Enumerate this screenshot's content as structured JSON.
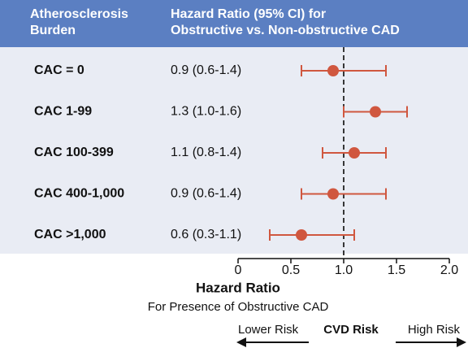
{
  "chart_data": {
    "type": "forest",
    "column_headers": [
      [
        "Atherosclerosis",
        "Burden"
      ],
      [
        "Hazard Ratio (95% CI) for",
        "Obstructive vs. Non-obstructive CAD"
      ]
    ],
    "categories": [
      "CAC = 0",
      "CAC 1-99",
      "CAC 100-399",
      "CAC 400-1,000",
      "CAC >1,000"
    ],
    "values": [
      0.9,
      1.3,
      1.1,
      0.9,
      0.6
    ],
    "ci_low": [
      0.6,
      1.0,
      0.8,
      0.6,
      0.3
    ],
    "ci_high": [
      1.4,
      1.6,
      1.4,
      1.4,
      1.1
    ],
    "value_labels": [
      "0.9 (0.6-1.4)",
      "1.3 (1.0-1.6)",
      "1.1 (0.8-1.4)",
      "0.9 (0.6-1.4)",
      "0.6 (0.3-1.1)"
    ],
    "color": "#d0573f",
    "xlim": [
      0,
      2
    ],
    "xticks": [
      0,
      0.5,
      {
        "value": 1,
        "label": "1.0"
      },
      1.5,
      {
        "value": 2,
        "label": "2.0"
      }
    ],
    "reference_line": 1,
    "xlabel": "Hazard Ratio",
    "xlabel_sub": "For Presence of Obstructive CAD",
    "lower_label": "Lower Risk",
    "center_label": "CVD Risk",
    "upper_label": "High Risk"
  }
}
